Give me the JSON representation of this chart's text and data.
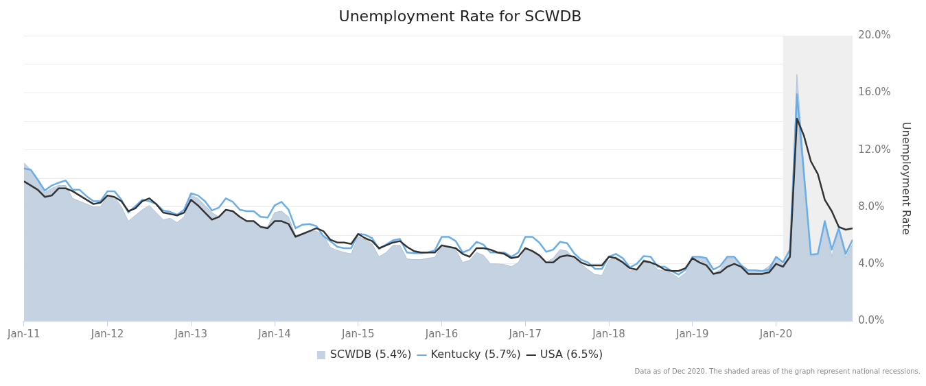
{
  "chart_data": {
    "type": "line",
    "title": "Unemployment Rate for SCWDB",
    "ylabel": "Unemployment Rate",
    "x": [
      "2011-01",
      "2011-02",
      "2011-03",
      "2011-04",
      "2011-05",
      "2011-06",
      "2011-07",
      "2011-08",
      "2011-09",
      "2011-10",
      "2011-11",
      "2011-12",
      "2012-01",
      "2012-02",
      "2012-03",
      "2012-04",
      "2012-05",
      "2012-06",
      "2012-07",
      "2012-08",
      "2012-09",
      "2012-10",
      "2012-11",
      "2012-12",
      "2013-01",
      "2013-02",
      "2013-03",
      "2013-04",
      "2013-05",
      "2013-06",
      "2013-07",
      "2013-08",
      "2013-09",
      "2013-10",
      "2013-11",
      "2013-12",
      "2014-01",
      "2014-02",
      "2014-03",
      "2014-04",
      "2014-05",
      "2014-06",
      "2014-07",
      "2014-08",
      "2014-09",
      "2014-10",
      "2014-11",
      "2014-12",
      "2015-01",
      "2015-02",
      "2015-03",
      "2015-04",
      "2015-05",
      "2015-06",
      "2015-07",
      "2015-08",
      "2015-09",
      "2015-10",
      "2015-11",
      "2015-12",
      "2016-01",
      "2016-02",
      "2016-03",
      "2016-04",
      "2016-05",
      "2016-06",
      "2016-07",
      "2016-08",
      "2016-09",
      "2016-10",
      "2016-11",
      "2016-12",
      "2017-01",
      "2017-02",
      "2017-03",
      "2017-04",
      "2017-05",
      "2017-06",
      "2017-07",
      "2017-08",
      "2017-09",
      "2017-10",
      "2017-11",
      "2017-12",
      "2018-01",
      "2018-02",
      "2018-03",
      "2018-04",
      "2018-05",
      "2018-06",
      "2018-07",
      "2018-08",
      "2018-09",
      "2018-10",
      "2018-11",
      "2018-12",
      "2019-01",
      "2019-02",
      "2019-03",
      "2019-04",
      "2019-05",
      "2019-06",
      "2019-07",
      "2019-08",
      "2019-09",
      "2019-10",
      "2019-11",
      "2019-12",
      "2020-01",
      "2020-02",
      "2020-03",
      "2020-04",
      "2020-05",
      "2020-06",
      "2020-07",
      "2020-08",
      "2020-09",
      "2020-10",
      "2020-11",
      "2020-12"
    ],
    "xlim": [
      "2011-01",
      "2020-12"
    ],
    "xticks": [
      {
        "value": "2011-01",
        "label": "Jan-11"
      },
      {
        "value": "2012-01",
        "label": "Jan-12"
      },
      {
        "value": "2013-01",
        "label": "Jan-13"
      },
      {
        "value": "2014-01",
        "label": "Jan-14"
      },
      {
        "value": "2015-01",
        "label": "Jan-15"
      },
      {
        "value": "2016-01",
        "label": "Jan-16"
      },
      {
        "value": "2017-01",
        "label": "Jan-17"
      },
      {
        "value": "2018-01",
        "label": "Jan-18"
      },
      {
        "value": "2019-01",
        "label": "Jan-19"
      },
      {
        "value": "2020-01",
        "label": "Jan-20"
      }
    ],
    "ylim": [
      0,
      20
    ],
    "yticks": [
      {
        "value": 0,
        "label": "0.0%"
      },
      {
        "value": 4,
        "label": "4.0%"
      },
      {
        "value": 6,
        "label": null
      },
      {
        "value": 8,
        "label": "8.0%"
      },
      {
        "value": 10,
        "label": null
      },
      {
        "value": 12,
        "label": "12.0%"
      },
      {
        "value": 14,
        "label": null
      },
      {
        "value": 16,
        "label": "16.0%"
      },
      {
        "value": 18,
        "label": null
      },
      {
        "value": 20,
        "label": "20.0%"
      }
    ],
    "grid": "y",
    "legend": "bottom",
    "marker": "none",
    "bands": [
      {
        "axis": "x",
        "from": "2020-02",
        "to": "2020-12",
        "color": "#efefef"
      }
    ],
    "series": [
      {
        "name": "SCWDB (5.4%)",
        "type": "area",
        "color": "#c5d2e2",
        "values": [
          11.1,
          10.6,
          9.8,
          9.0,
          9.3,
          9.5,
          9.5,
          8.6,
          8.4,
          8.2,
          8.0,
          8.0,
          8.8,
          8.7,
          8.0,
          7.0,
          7.4,
          7.8,
          8.1,
          7.6,
          7.1,
          7.2,
          6.9,
          7.3,
          8.8,
          8.6,
          8.1,
          7.6,
          7.3,
          7.8,
          7.7,
          7.3,
          6.9,
          6.9,
          6.6,
          6.6,
          7.6,
          7.7,
          7.3,
          6.0,
          6.1,
          6.3,
          6.3,
          6.0,
          5.15,
          4.95,
          4.8,
          4.7,
          5.9,
          5.7,
          5.4,
          4.5,
          4.8,
          5.3,
          5.3,
          4.35,
          4.3,
          4.3,
          4.4,
          4.45,
          5.3,
          5.2,
          5.0,
          4.1,
          4.25,
          4.8,
          4.6,
          4.0,
          4.0,
          3.95,
          3.8,
          4.1,
          5.1,
          4.95,
          4.55,
          4.1,
          4.4,
          5.0,
          4.9,
          4.35,
          4.0,
          3.6,
          3.25,
          3.2,
          4.25,
          4.5,
          4.2,
          3.5,
          3.6,
          4.3,
          4.15,
          3.6,
          3.5,
          3.35,
          3.0,
          3.35,
          4.4,
          4.4,
          4.3,
          3.35,
          3.6,
          4.4,
          4.4,
          3.85,
          3.45,
          3.45,
          3.5,
          3.85,
          4.4,
          3.9,
          4.7,
          17.3,
          10.9,
          4.55,
          4.65,
          6.75,
          4.5,
          6.35,
          4.4,
          5.4
        ]
      },
      {
        "name": "Kentucky (5.7%)",
        "type": "line",
        "color": "#6aaee8",
        "values": [
          10.7,
          10.6,
          9.9,
          9.15,
          9.5,
          9.7,
          9.85,
          9.2,
          9.2,
          8.75,
          8.4,
          8.4,
          9.1,
          9.1,
          8.5,
          7.6,
          8.05,
          8.5,
          8.4,
          8.2,
          7.75,
          7.65,
          7.45,
          7.8,
          8.95,
          8.8,
          8.4,
          7.75,
          7.95,
          8.6,
          8.35,
          7.8,
          7.7,
          7.7,
          7.3,
          7.25,
          8.1,
          8.35,
          7.8,
          6.5,
          6.75,
          6.8,
          6.65,
          5.95,
          5.6,
          5.2,
          5.1,
          5.1,
          6.1,
          6.05,
          5.8,
          5.05,
          5.35,
          5.65,
          5.75,
          4.8,
          4.75,
          4.75,
          4.8,
          4.95,
          5.9,
          5.9,
          5.6,
          4.8,
          5.0,
          5.55,
          5.35,
          4.8,
          4.8,
          4.8,
          4.5,
          4.8,
          5.9,
          5.9,
          5.5,
          4.85,
          5.0,
          5.55,
          5.45,
          4.75,
          4.3,
          4.1,
          3.65,
          3.65,
          4.5,
          4.7,
          4.4,
          3.75,
          4.0,
          4.55,
          4.5,
          3.8,
          3.8,
          3.5,
          3.25,
          3.6,
          4.5,
          4.5,
          4.4,
          3.6,
          3.85,
          4.5,
          4.5,
          3.9,
          3.55,
          3.55,
          3.5,
          3.6,
          4.5,
          4.1,
          5.0,
          15.9,
          10.3,
          4.65,
          4.7,
          7.0,
          5.0,
          6.5,
          4.7,
          5.7
        ]
      },
      {
        "name": "USA (6.5%)",
        "type": "line",
        "color": "#333333",
        "values": [
          9.8,
          9.5,
          9.2,
          8.7,
          8.8,
          9.3,
          9.3,
          9.1,
          8.8,
          8.5,
          8.2,
          8.3,
          8.8,
          8.7,
          8.4,
          7.7,
          7.9,
          8.4,
          8.6,
          8.2,
          7.6,
          7.5,
          7.4,
          7.6,
          8.5,
          8.1,
          7.6,
          7.1,
          7.3,
          7.8,
          7.7,
          7.3,
          7.0,
          7.0,
          6.6,
          6.5,
          7.0,
          7.0,
          6.8,
          5.9,
          6.1,
          6.3,
          6.5,
          6.3,
          5.7,
          5.5,
          5.5,
          5.4,
          6.1,
          5.8,
          5.6,
          5.1,
          5.3,
          5.5,
          5.6,
          5.2,
          4.9,
          4.8,
          4.8,
          4.8,
          5.3,
          5.2,
          5.1,
          4.7,
          4.5,
          5.1,
          5.1,
          5.0,
          4.8,
          4.7,
          4.4,
          4.5,
          5.1,
          4.9,
          4.6,
          4.1,
          4.1,
          4.5,
          4.6,
          4.5,
          4.1,
          3.9,
          3.9,
          3.9,
          4.5,
          4.4,
          4.1,
          3.7,
          3.6,
          4.2,
          4.1,
          3.9,
          3.6,
          3.5,
          3.5,
          3.7,
          4.4,
          4.1,
          3.9,
          3.3,
          3.4,
          3.8,
          4.0,
          3.8,
          3.3,
          3.3,
          3.3,
          3.4,
          4.0,
          3.8,
          4.5,
          14.2,
          13.0,
          11.2,
          10.3,
          8.5,
          7.7,
          6.6,
          6.4,
          6.5
        ]
      }
    ],
    "annotations": [
      "Data as of Dec 2020. The shaded areas of the graph represent national recessions."
    ]
  }
}
